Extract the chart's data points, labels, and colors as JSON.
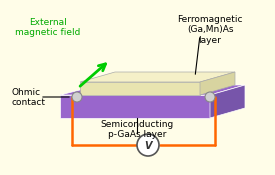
{
  "bg_color": "#fffde8",
  "title": "",
  "ext_field_label": "External\nmagnetic field",
  "ext_field_color": "#00aa00",
  "ferro_label": "Ferromagnetic\n(Ga,Mn)As\nlayer",
  "ferro_color": "#000000",
  "ohmic_label": "Ohmic\ncontact",
  "ohmic_color": "#000000",
  "semi_label": "Semiconducting\np-GaAs layer",
  "semi_color": "#000000",
  "purple_color": "#9966cc",
  "yellow_cream_color": "#f5f0c8",
  "orange_wire_color": "#ff6600",
  "arrow_color": "#00cc00",
  "circle_contact_color": "#cccccc",
  "voltmeter_color": "#ffffff",
  "voltmeter_border": "#555555"
}
